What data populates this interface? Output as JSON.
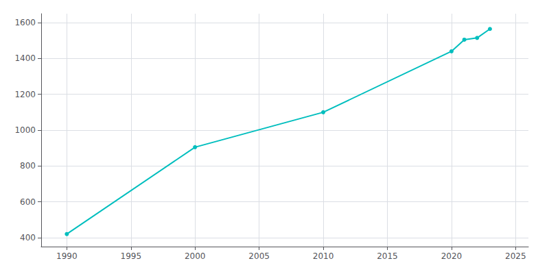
{
  "chart_data": {
    "type": "line",
    "x": [
      1990,
      2000,
      2010,
      2020,
      2021,
      2022,
      2023
    ],
    "values": [
      420,
      905,
      1100,
      1440,
      1505,
      1515,
      1565
    ],
    "color": "#00BEBE",
    "marker": "circle",
    "xlim": [
      1988,
      2026
    ],
    "ylim": [
      350,
      1650
    ],
    "xticks": [
      1990,
      1995,
      2000,
      2005,
      2010,
      2015,
      2020,
      2025
    ],
    "yticks": [
      400,
      600,
      800,
      1000,
      1200,
      1400,
      1600
    ],
    "grid": true
  }
}
